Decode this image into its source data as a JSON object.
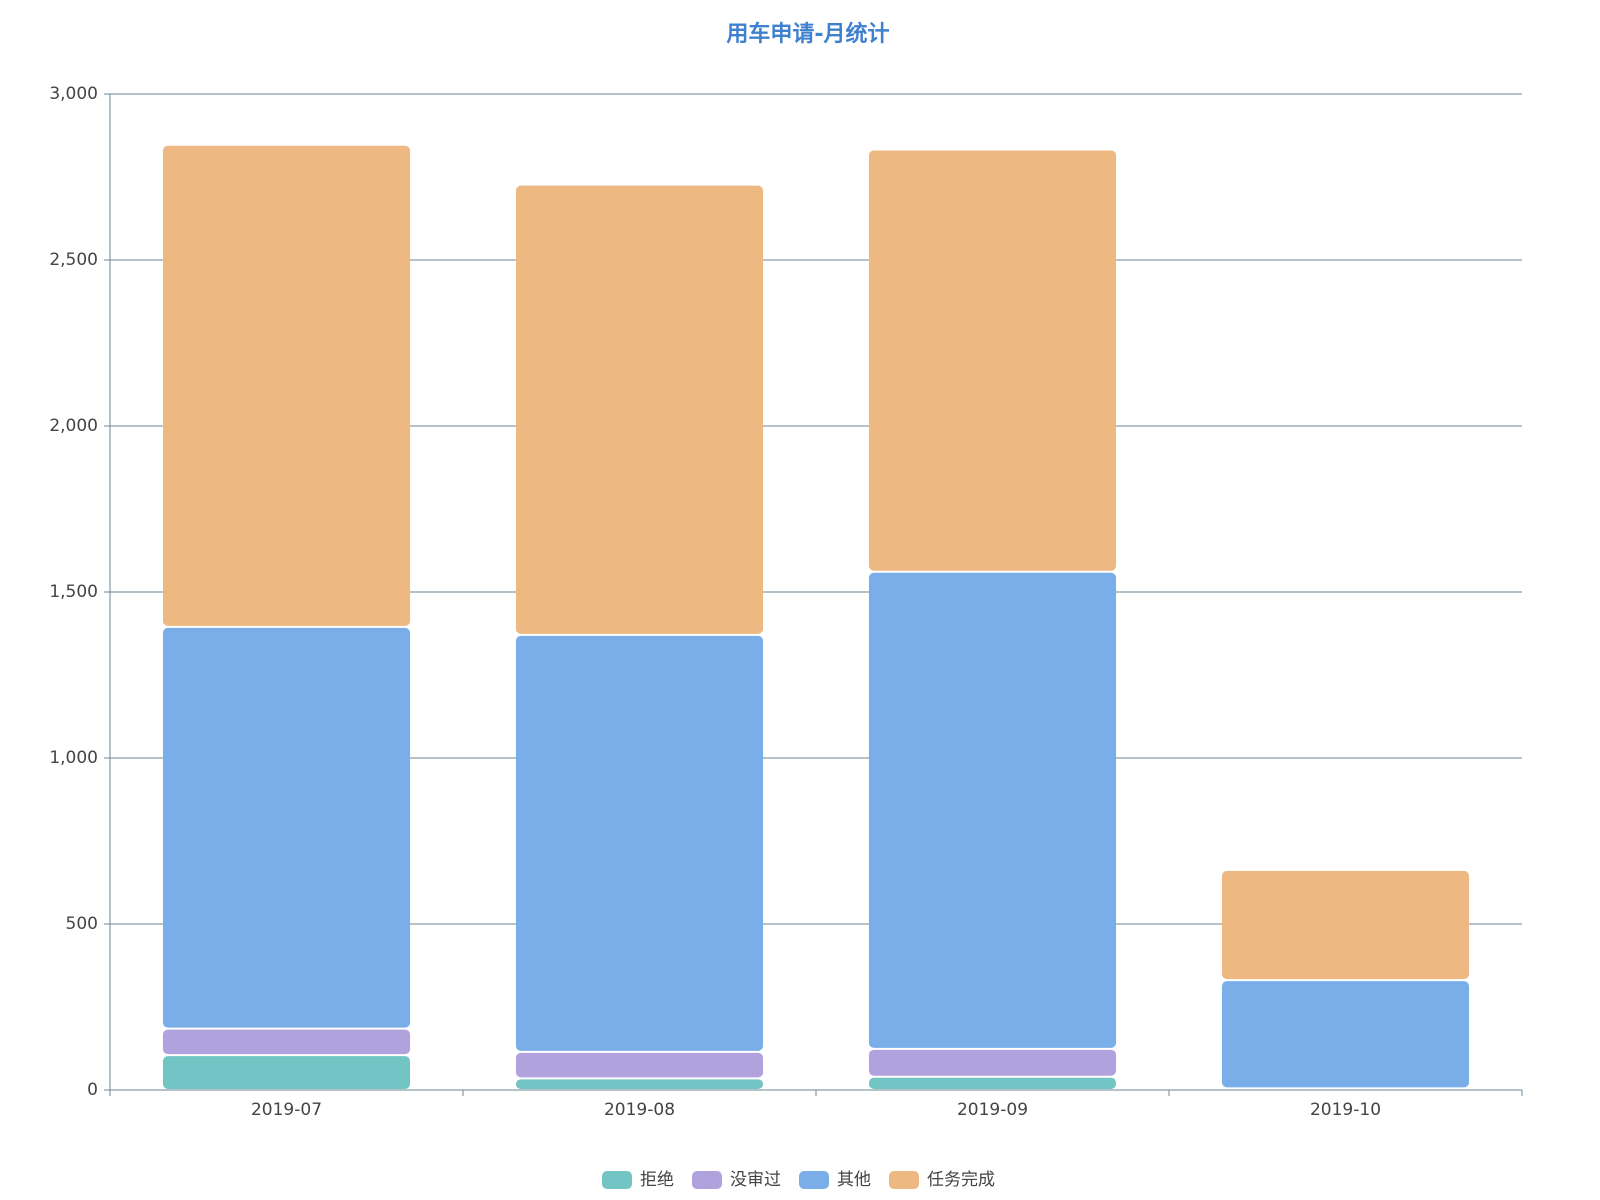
{
  "chart_data": {
    "type": "stacked_bar",
    "title": "用车申请-月统计",
    "categories": [
      "2019-07",
      "2019-08",
      "2019-09",
      "2019-10"
    ],
    "series": [
      {
        "name": "拒绝",
        "color": "#73c4c4",
        "values": [
          105,
          35,
          40,
          5
        ]
      },
      {
        "name": "没审过",
        "color": "#b0a2dc",
        "values": [
          80,
          80,
          84,
          0
        ]
      },
      {
        "name": "其他",
        "color": "#7aaee8",
        "values": [
          1210,
          1256,
          1437,
          326
        ]
      },
      {
        "name": "任务完成",
        "color": "#eeb882",
        "values": [
          1452,
          1356,
          1272,
          332
        ]
      }
    ],
    "ylim": [
      0,
      3000
    ],
    "yticks": [
      0,
      500,
      {
        "value": 1000,
        "label": "1,000"
      },
      {
        "value": 1500,
        "label": "1,500"
      },
      {
        "value": 2000,
        "label": "2,000"
      },
      {
        "value": 2500,
        "label": "2,500"
      },
      {
        "value": 3000,
        "label": "3,000"
      }
    ],
    "grid": true,
    "legend": "bottom"
  }
}
